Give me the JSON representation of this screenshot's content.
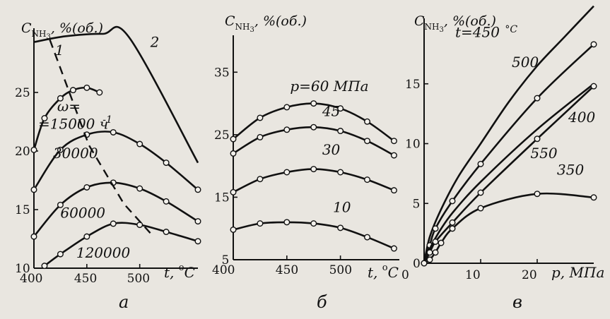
{
  "chart_data": [
    {
      "type": "line",
      "panel_label": "а",
      "ylabel": "C_NH3, %(об.)",
      "ylabel_main": "C",
      "ylabel_sub": "NH",
      "ylabel_subsub": "3",
      "ylabel_tail": ", %(об.)",
      "xlabel": "t, °C",
      "xlabel_main": "t, ",
      "xlabel_sup": "o",
      "xlabel_tail": "C",
      "xlim": [
        400,
        555
      ],
      "ylim": [
        10,
        30
      ],
      "xticks": [
        400,
        450,
        500
      ],
      "xtick_labels": [
        "400",
        "450",
        "500"
      ],
      "yticks": [
        10,
        15,
        20,
        25
      ],
      "ytick_labels": [
        "10",
        "15",
        "20",
        "25"
      ],
      "series": [
        {
          "name": "ω=15000 ч-1",
          "x": [
            400,
            410,
            425,
            437,
            450,
            462
          ],
          "y": [
            20.1,
            22.8,
            24.5,
            25.2,
            25.4,
            25.0
          ],
          "markers": true,
          "style": "solid"
        },
        {
          "name": "30000",
          "x": [
            400,
            425,
            450,
            475,
            500,
            525,
            555
          ],
          "y": [
            16.7,
            20.1,
            21.4,
            21.6,
            20.6,
            19.0,
            16.7
          ],
          "markers": true,
          "style": "solid"
        },
        {
          "name": "60000",
          "x": [
            400,
            425,
            450,
            475,
            500,
            525,
            555
          ],
          "y": [
            12.7,
            15.4,
            16.9,
            17.3,
            16.8,
            15.7,
            14.0
          ],
          "markers": true,
          "style": "solid"
        },
        {
          "name": "120000",
          "x": [
            410,
            425,
            450,
            475,
            500,
            525,
            555
          ],
          "y": [
            10.2,
            11.2,
            12.7,
            13.8,
            13.7,
            13.1,
            12.3
          ],
          "markers": true,
          "style": "solid"
        },
        {
          "name": "1",
          "x": [
            415,
            452,
            485,
            510
          ],
          "y": [
            29.5,
            20.5,
            15.5,
            13.0
          ],
          "markers": false,
          "style": "dashed"
        },
        {
          "name": "2",
          "x": [
            400,
            430,
            465,
            490,
            555
          ],
          "y": [
            29.3,
            29.8,
            30.0,
            29.7,
            19.0
          ],
          "markers": false,
          "style": "solid"
        }
      ],
      "curve_labels": [
        {
          "text": "1",
          "x": 420,
          "y": 28.2
        },
        {
          "text": "2",
          "x": 510,
          "y": 28.9
        },
        {
          "text": "ω=",
          "x": 422,
          "y": 23.4
        },
        {
          "text": "=15000 ч",
          "x": 404,
          "y": 21.9
        },
        {
          "text": "-1",
          "x": 465,
          "y": 22.4
        },
        {
          "text": "30000",
          "x": 418,
          "y": 19.4
        },
        {
          "text": "60000",
          "x": 425,
          "y": 14.3
        },
        {
          "text": "120000",
          "x": 440,
          "y": 10.9
        }
      ]
    },
    {
      "type": "line",
      "panel_label": "б",
      "ylabel": "C_NH3, %(об.)",
      "ylabel_main": "C",
      "ylabel_sub": "NH",
      "ylabel_subsub": "3",
      "ylabel_tail": ", %(об.)",
      "xlabel": "t, °C",
      "xlabel_main": "t, ",
      "xlabel_sup": "o",
      "xlabel_tail": "C",
      "xlim": [
        400,
        555
      ],
      "ylim": [
        5,
        40
      ],
      "xticks": [
        400,
        450,
        500
      ],
      "xtick_labels": [
        "400",
        "450",
        "500"
      ],
      "yticks": [
        5,
        15,
        25,
        35
      ],
      "ytick_labels": [
        "5",
        "15",
        "25",
        "35"
      ],
      "series": [
        {
          "name": "p=60 МПа",
          "x": [
            400,
            425,
            450,
            475,
            500,
            525,
            550
          ],
          "y": [
            24.3,
            27.7,
            29.4,
            30.0,
            29.2,
            27.1,
            24.0
          ],
          "markers": true,
          "style": "solid"
        },
        {
          "name": "45",
          "x": [
            400,
            425,
            450,
            475,
            500,
            525,
            550
          ],
          "y": [
            22.0,
            24.6,
            25.8,
            26.2,
            25.6,
            24.0,
            21.7
          ],
          "markers": true,
          "style": "solid"
        },
        {
          "name": "30",
          "x": [
            400,
            425,
            450,
            475,
            500,
            525,
            550
          ],
          "y": [
            15.8,
            17.9,
            19.0,
            19.5,
            19.0,
            17.8,
            16.1
          ],
          "markers": true,
          "style": "solid"
        },
        {
          "name": "10",
          "x": [
            400,
            425,
            450,
            475,
            500,
            525,
            550
          ],
          "y": [
            9.8,
            10.8,
            11.0,
            10.8,
            10.1,
            8.6,
            6.8
          ],
          "markers": true,
          "style": "solid"
        }
      ],
      "curve_labels": [
        {
          "text": "p=60 МПа",
          "x": 453,
          "y": 32.0
        },
        {
          "text": "45",
          "x": 483,
          "y": 28.0
        },
        {
          "text": "30",
          "x": 483,
          "y": 21.8
        },
        {
          "text": "10",
          "x": 493,
          "y": 12.6
        }
      ]
    },
    {
      "type": "line",
      "panel_label": "в",
      "ylabel": "C_NH3, %(об.)",
      "ylabel_main": "C",
      "ylabel_sub": "NH",
      "ylabel_subsub": "3",
      "ylabel_tail": ", %(об.)",
      "xlabel": "p, МПа",
      "xlabel_main": "p, МПа",
      "xlabel_sup": "",
      "xlabel_tail": "",
      "xlim": [
        0,
        30
      ],
      "ylim": [
        0,
        20
      ],
      "xticks": [
        0,
        10,
        20
      ],
      "xtick_labels": [
        "0",
        "10",
        "20"
      ],
      "yticks": [
        0,
        5,
        10,
        15
      ],
      "ytick_labels": [
        "0",
        "5",
        "10",
        "15"
      ],
      "series": [
        {
          "name": "t=450 °C",
          "x": [
            0,
            1,
            3,
            6,
            10,
            15,
            20,
            25,
            30
          ],
          "y": [
            0,
            2.2,
            4.5,
            7.2,
            10.0,
            13.5,
            16.5,
            19.0,
            21.5
          ],
          "markers": false,
          "style": "solid"
        },
        {
          "name": "500",
          "x": [
            0,
            1,
            2,
            5,
            10,
            20,
            30
          ],
          "y": [
            0,
            1.5,
            2.9,
            5.2,
            8.3,
            13.8,
            18.3
          ],
          "markers": true,
          "style": "solid"
        },
        {
          "name": "400",
          "x": [
            0,
            1,
            2.5,
            5,
            10,
            20,
            30
          ],
          "y": [
            0,
            1.2,
            2.5,
            4.2,
            6.8,
            11.2,
            15.0
          ],
          "markers": false,
          "style": "solid"
        },
        {
          "name": "550",
          "x": [
            0,
            1,
            2,
            5,
            10,
            20,
            30
          ],
          "y": [
            0,
            0.9,
            1.8,
            3.4,
            5.9,
            10.4,
            14.8
          ],
          "markers": true,
          "style": "solid"
        },
        {
          "name": "350",
          "x": [
            0,
            1,
            2,
            3,
            5,
            10,
            20,
            30
          ],
          "y": [
            0,
            0.3,
            0.9,
            1.7,
            2.9,
            4.6,
            5.8,
            5.5
          ],
          "markers": true,
          "style": "solid"
        }
      ],
      "curve_labels": [
        {
          "text": "t=450",
          "x": 5.5,
          "y": 18.9
        },
        {
          "text": "°C",
          "x": 14.3,
          "y": 19.3
        },
        {
          "text": "500",
          "x": 15.5,
          "y": 16.4
        },
        {
          "text": "400",
          "x": 25.5,
          "y": 11.8
        },
        {
          "text": "550",
          "x": 18.8,
          "y": 8.8
        },
        {
          "text": "350",
          "x": 23.5,
          "y": 7.4
        }
      ]
    }
  ]
}
